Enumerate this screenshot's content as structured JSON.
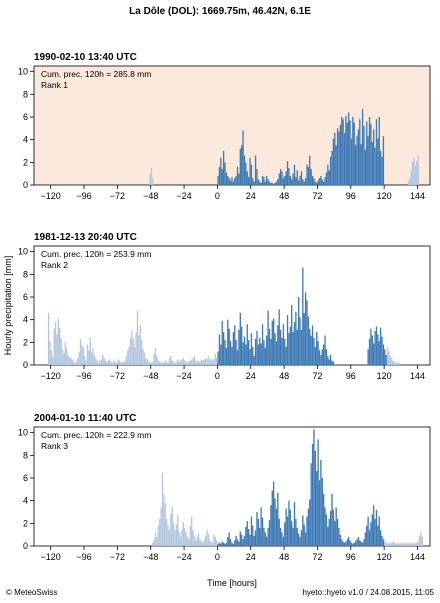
{
  "title": "La Dôle (DOL): 1669.75m, 46.42N, 6.1E",
  "footer_left": "© MeteoSwiss",
  "footer_right": "hyeto::hyeto v1.0 / 24.08.2015, 11:05",
  "colors": {
    "main_bar": "#3d7ab5",
    "context_bar": "#b3c7e0",
    "highlight_bg": "#fbe9dc"
  },
  "chart_data": [
    {
      "type": "bar",
      "title": "1990‑02‑10 13:40 UTC",
      "cum_label": "Cum. prec. 120h = 285.8 mm",
      "rank_label": "Rank 1",
      "highlight": true,
      "xlabel": "",
      "ylabel": "",
      "xlim": [
        -132,
        153
      ],
      "ylim": [
        0,
        10.5
      ],
      "xticks": [
        -120,
        -96,
        -72,
        -48,
        -24,
        0,
        24,
        48,
        72,
        96,
        120,
        144
      ],
      "yticks": [
        0,
        2,
        4,
        6,
        8,
        10
      ],
      "segments": [
        {
          "role": "context",
          "start": -49,
          "values": [
            1.0,
            1.5,
            0.6
          ]
        },
        {
          "role": "main",
          "start": 0,
          "values": [
            0.8,
            1.6,
            2.4,
            1.4,
            3.0,
            2.0,
            1.1,
            0.8,
            0.6,
            0.4,
            0.7,
            0.3,
            0.6,
            0.8,
            1.6,
            1.0,
            3.2,
            3.5,
            4.8,
            2.6,
            2.0,
            1.2,
            0.7,
            2.4,
            1.8,
            0.6,
            0.3,
            2.6,
            1.4,
            0.5,
            0.3,
            0.2,
            0.8,
            0.7,
            0.3,
            0.8,
            0.5,
            0.3,
            0.2,
            0.2,
            0.1,
            0.2,
            0.3,
            0.5,
            1.0,
            1.4,
            1.2,
            0.6,
            0.8,
            1.2,
            2.1,
            1.5,
            0.8,
            0.5,
            1.0,
            1.8,
            0.7,
            1.3,
            0.4,
            0.8,
            1.2,
            0.5,
            0.3,
            0.6,
            1.8,
            1.6,
            2.6,
            1.4,
            0.8,
            0.6,
            0.3,
            0.2,
            0.4,
            0.6,
            0.8,
            0.5,
            0.3,
            0.7,
            1.1,
            1.8,
            1.3,
            2.5,
            3.0,
            4.1,
            4.6,
            3.5,
            5.0,
            4.7,
            5.3,
            6.0,
            5.8,
            4.6,
            6.1,
            5.5,
            6.4,
            5.7,
            4.1,
            6.0,
            5.5,
            3.5,
            4.3,
            4.9,
            5.8,
            3.6,
            6.7,
            5.2,
            3.1,
            5.6,
            4.3,
            6.0,
            5.4,
            3.8,
            4.9,
            3.3,
            5.8,
            4.1,
            6.0,
            3.0,
            2.5,
            4.3
          ]
        },
        {
          "role": "context",
          "start": 137,
          "values": [
            0.3,
            0.6,
            1.3,
            2.1,
            2.4,
            1.7,
            2.1,
            2.6
          ]
        }
      ]
    },
    {
      "type": "bar",
      "title": "1981‑12‑13 20:40 UTC",
      "cum_label": "Cum. prec. 120h = 253.9 mm",
      "rank_label": "Rank 2",
      "highlight": false,
      "xlabel": "",
      "ylabel": "Hourly precipitation [mm]",
      "xlim": [
        -132,
        153
      ],
      "ylim": [
        0,
        10.5
      ],
      "xticks": [
        -120,
        -96,
        -72,
        -48,
        -24,
        0,
        24,
        48,
        72,
        96,
        120,
        144
      ],
      "yticks": [
        0,
        2,
        4,
        6,
        8,
        10
      ],
      "segments": [
        {
          "role": "context",
          "start": -122,
          "values": [
            4.6,
            2.1,
            1.3,
            0.7,
            3.2,
            3.8,
            2.7,
            4.1,
            3.3,
            2.4,
            1.4,
            1.0,
            2.0,
            1.5,
            0.9,
            0.7,
            0.6,
            0.5,
            0.3,
            0.2,
            0.3,
            0.6,
            1.2,
            2.3,
            1.8,
            1.6,
            0.8,
            0.4,
            1.8,
            1.3,
            2.4,
            1.1,
            1.5,
            0.9,
            0.6,
            0.4,
            0.2,
            0.4,
            0.5,
            0.9,
            0.6,
            0.4,
            0.3,
            0.4,
            0.5,
            0.3,
            0.2,
            0.4,
            0.3,
            0.2,
            0.5,
            0.4,
            0.3,
            0.2,
            0.3,
            0.4,
            0.8,
            1.3,
            1.6,
            2.4,
            3.1,
            2.3,
            1.6,
            2.9,
            4.8,
            2.6,
            3.5,
            2.2,
            1.4,
            1.1,
            0.6,
            0.5,
            0.3,
            0.3,
            0.2,
            0.3,
            1.0,
            1.5,
            0.8,
            0.4,
            0.3,
            0.2,
            0.3,
            0.2,
            0.4,
            0.3,
            0.2,
            0.6,
            0.8,
            0.4,
            0.3,
            0.2,
            0.3,
            0.5,
            0.3,
            0.4,
            0.5,
            0.6,
            0.4,
            0.3,
            0.2,
            0.3,
            0.4,
            0.5,
            0.6,
            0.8,
            0.4,
            0.3,
            0.4,
            0.3,
            0.5,
            0.4,
            0.5,
            0.6,
            0.5,
            0.8,
            0.4,
            0.6,
            0.4,
            0.5,
            1.0,
            0.6
          ]
        },
        {
          "role": "main",
          "start": 0,
          "values": [
            1.2,
            2.7,
            1.8,
            3.9,
            2.9,
            2.2,
            1.5,
            4.0,
            3.2,
            2.1,
            1.6,
            2.9,
            3.5,
            2.2,
            1.3,
            3.1,
            4.6,
            3.4,
            2.0,
            2.5,
            1.8,
            3.6,
            2.2,
            1.4,
            2.8,
            1.6,
            0.8,
            2.3,
            3.0,
            1.8,
            2.4,
            1.9,
            3.6,
            2.2,
            1.5,
            2.6,
            4.8,
            3.2,
            2.3,
            3.9,
            4.1,
            2.8,
            2.1,
            3.5,
            4.9,
            3.1,
            2.4,
            3.6,
            2.3,
            1.6,
            4.4,
            2.8,
            3.4,
            5.3,
            2.9,
            3.8,
            4.7,
            3.1,
            6.0,
            4.2,
            3.1,
            8.6,
            4.6,
            6.4,
            5.7,
            4.3,
            3.2,
            2.6,
            3.5,
            2.4,
            1.6,
            2.9,
            2.1,
            1.3,
            0.9,
            1.4,
            1.8,
            2.6,
            1.4,
            0.8,
            0.5,
            0.9,
            0.4,
            0.3
          ]
        },
        {
          "role": "main",
          "start": 108,
          "values": [
            1.4,
            2.3,
            3.2,
            2.6,
            1.9,
            3.0,
            3.4,
            2.7,
            2.1,
            3.3,
            2.5,
            1.8,
            1.4,
            0.9
          ]
        },
        {
          "role": "context",
          "start": 122,
          "values": [
            1.5,
            1.2,
            0.8,
            0.6,
            0.4,
            0.3,
            0.2,
            0.2,
            0.3
          ]
        }
      ]
    },
    {
      "type": "bar",
      "title": "2004‑01‑10 11:40 UTC",
      "cum_label": "Cum. prec. 120h = 222.9 mm",
      "rank_label": "Rank 3",
      "highlight": false,
      "xlabel": "Time [hours]",
      "ylabel": "",
      "xlim": [
        -132,
        153
      ],
      "ylim": [
        0,
        10.5
      ],
      "xticks": [
        -120,
        -96,
        -72,
        -48,
        -24,
        0,
        24,
        48,
        72,
        96,
        120,
        144
      ],
      "yticks": [
        0,
        2,
        4,
        6,
        8,
        10
      ],
      "segments": [
        {
          "role": "context",
          "start": -47,
          "values": [
            0.3,
            0.6,
            1.2,
            0.8,
            1.8,
            2.4,
            3.4,
            6.5,
            4.6,
            3.8,
            2.4,
            1.8,
            1.4,
            2.8,
            3.5,
            2.1,
            1.4,
            1.9,
            2.7,
            1.3,
            0.8,
            1.4,
            2.1,
            1.6,
            1.2,
            0.8,
            0.6,
            1.8,
            2.6,
            1.4,
            0.9,
            0.5,
            0.8,
            1.1,
            0.6,
            0.4,
            0.3,
            0.5,
            0.9,
            1.4,
            1.1,
            0.6,
            0.4,
            0.3,
            1.0,
            0.8,
            0.5
          ]
        },
        {
          "role": "main",
          "start": 0,
          "values": [
            0.2,
            0.3,
            0.2,
            0.4,
            0.3,
            0.2,
            0.3,
            0.8,
            1.2,
            0.6,
            0.3,
            0.2,
            0.5,
            0.9,
            0.6,
            0.4,
            1.3,
            1.0,
            0.6,
            0.9,
            1.7,
            2.2,
            1.5,
            1.0,
            2.6,
            1.8,
            0.9,
            1.4,
            3.0,
            2.4,
            1.6,
            3.4,
            2.5,
            1.6,
            1.2,
            0.8,
            1.6,
            2.3,
            3.6,
            4.9,
            5.7,
            4.2,
            3.3,
            4.7,
            2.4,
            1.6,
            1.2,
            0.8,
            2.1,
            3.3,
            2.6,
            4.0,
            3.2,
            2.2,
            1.6,
            3.9,
            2.4,
            1.6,
            1.1,
            0.8,
            1.4,
            2.7,
            1.9,
            1.2,
            2.6,
            3.3,
            4.1,
            7.3,
            9.0,
            10.3,
            8.4,
            6.6,
            9.4,
            5.8,
            7.6,
            6.0,
            4.6,
            3.4,
            2.8,
            1.7,
            2.4,
            3.1,
            4.6,
            3.2,
            2.2,
            3.4,
            2.4,
            1.6,
            1.0,
            0.6,
            0.4,
            0.3,
            0.4,
            0.6,
            0.8,
            0.5,
            0.3,
            0.2,
            0.3,
            0.4,
            0.6,
            0.8,
            0.5,
            0.4,
            0.3,
            0.6,
            1.2,
            1.8,
            2.6,
            1.4,
            2.1,
            2.8,
            3.6,
            2.4,
            3.2,
            1.8,
            2.6,
            1.4,
            0.9,
            0.6
          ]
        },
        {
          "role": "context",
          "start": 120,
          "values": [
            0.5,
            0.3,
            0.2,
            0.3,
            0.2,
            0.3,
            0.4,
            0.3,
            0.2,
            0.3,
            0.2,
            0.3,
            0.2,
            0.3,
            0.2,
            0.3,
            0.2,
            0.3,
            0.2,
            0.3,
            0.2,
            0.3,
            0.2,
            0.3,
            0.4,
            0.9,
            1.3,
            0.8
          ]
        }
      ]
    }
  ]
}
